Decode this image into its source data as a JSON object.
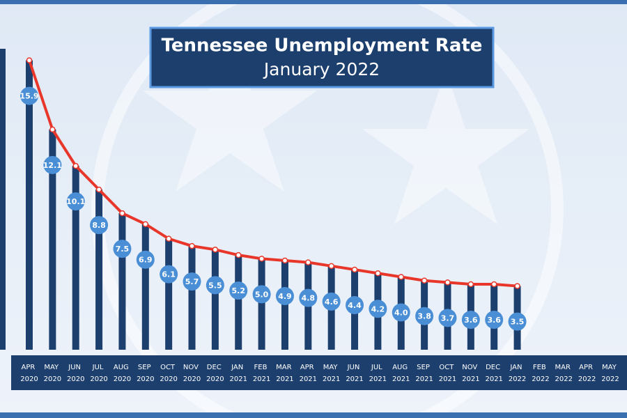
{
  "chart_data": {
    "type": "line-bar",
    "title": "Tennessee Unemployment Rate",
    "subtitle": "January 2022",
    "categories": [
      "APR 2020",
      "MAY 2020",
      "JUN 2020",
      "JUL 2020",
      "AUG 2020",
      "SEP 2020",
      "OCT 2020",
      "NOV 2020",
      "DEC 2020",
      "JAN 2021",
      "FEB 2021",
      "MAR 2021",
      "APR 2021",
      "MAY 2021",
      "JUN 2021",
      "JUL 2021",
      "AUG 2021",
      "SEP 2021",
      "OCT 2021",
      "NOV 2021",
      "DEC 2021",
      "JAN 2022",
      "FEB 2022",
      "MAR 2022",
      "APR 2022",
      "MAY 2022"
    ],
    "values": [
      15.9,
      12.1,
      10.1,
      8.8,
      7.5,
      6.9,
      6.1,
      5.7,
      5.5,
      5.2,
      5.0,
      4.9,
      4.8,
      4.6,
      4.4,
      4.2,
      4.0,
      3.8,
      3.7,
      3.6,
      3.6,
      3.5,
      null,
      null,
      null,
      null
    ],
    "value_labels": [
      "15.9",
      "12.1",
      "10.1",
      "8.8",
      "7.5",
      "6.9",
      "6.1",
      "5.7",
      "5.5",
      "5.2",
      "5.0",
      "4.9",
      "4.8",
      "4.6",
      "4.4",
      "4.2",
      "4.0",
      "3.8",
      "3.7",
      "3.6",
      "3.6",
      "3.5",
      null,
      null,
      null,
      null
    ],
    "bar_color": "#1d3f6e",
    "line_color": "#e8372a",
    "label_color": "#4a8fd6",
    "ylim": [
      0,
      16
    ]
  }
}
